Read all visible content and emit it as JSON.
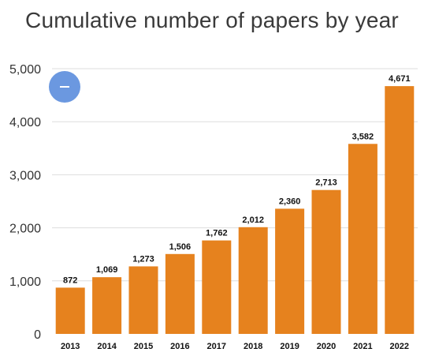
{
  "chart_data": {
    "type": "bar",
    "title": "Cumulative number of papers by year",
    "categories": [
      "2013",
      "2014",
      "2015",
      "2016",
      "2017",
      "2018",
      "2019",
      "2020",
      "2021",
      "2022"
    ],
    "values": [
      872,
      1069,
      1273,
      1506,
      1762,
      2012,
      2360,
      2713,
      3582,
      4671
    ],
    "data_labels": [
      "872",
      "1,069",
      "1,273",
      "1,506",
      "1,762",
      "2,012",
      "2,360",
      "2,713",
      "3,582",
      "4,671"
    ],
    "y_ticks": [
      0,
      1000,
      2000,
      3000,
      4000,
      5000
    ],
    "y_tick_labels": [
      "0",
      "1,000",
      "2,000",
      "3,000",
      "4,000",
      "5,000"
    ],
    "ylim": [
      0,
      5000
    ],
    "xlabel": "",
    "ylabel": "",
    "grid": true,
    "bar_color": "#e6821e"
  },
  "controls": {
    "zoom_out_icon": "minus-icon",
    "zoom_button_color": "#6b98e0"
  }
}
